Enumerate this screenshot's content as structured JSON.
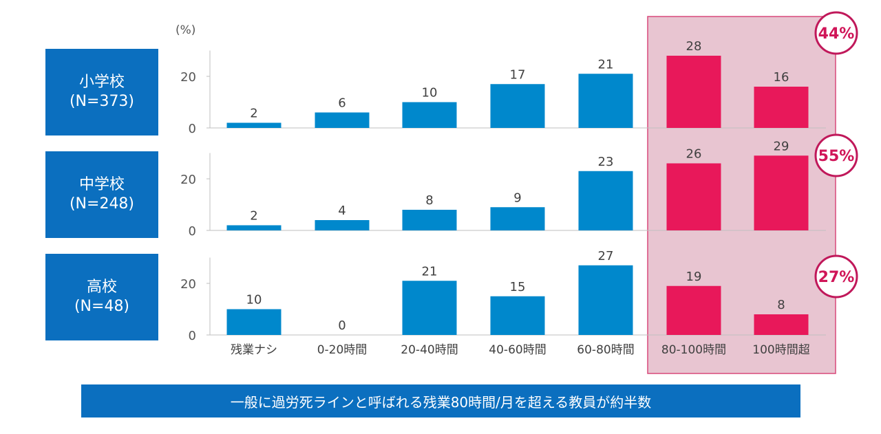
{
  "unit_label": "(%)",
  "groups": [
    {
      "name": "小学校",
      "n": "(N=373)",
      "badge": "44%"
    },
    {
      "name": "中学校",
      "n": "(N=248)",
      "badge": "55%"
    },
    {
      "name": "高校",
      "n": "(N=48)",
      "badge": "27%"
    }
  ],
  "footer_text": "一般に過労死ラインと呼ばれる残業80時間/月を超える教員が約半数",
  "colors": {
    "bar_normal": "#0088cc",
    "bar_highlight": "#e8185a",
    "highlight_bg": "#e8c5d1",
    "highlight_border": "#d8487a",
    "box": "#0b6fbf"
  },
  "chart_data": {
    "type": "bar",
    "categories": [
      "残業ナシ",
      "0-20時間",
      "20-40時間",
      "40-60時間",
      "60-80時間",
      "80-100時間",
      "100時間超"
    ],
    "highlighted_categories": [
      "80-100時間",
      "100時間超"
    ],
    "ylim": [
      0,
      30
    ],
    "yticks": [
      0,
      20
    ],
    "series": [
      {
        "name": "小学校",
        "values": [
          2,
          6,
          10,
          17,
          21,
          28,
          16
        ]
      },
      {
        "name": "中学校",
        "values": [
          2,
          4,
          8,
          9,
          23,
          26,
          29
        ]
      },
      {
        "name": "高校",
        "values": [
          10,
          0,
          21,
          15,
          27,
          19,
          8
        ]
      }
    ]
  }
}
